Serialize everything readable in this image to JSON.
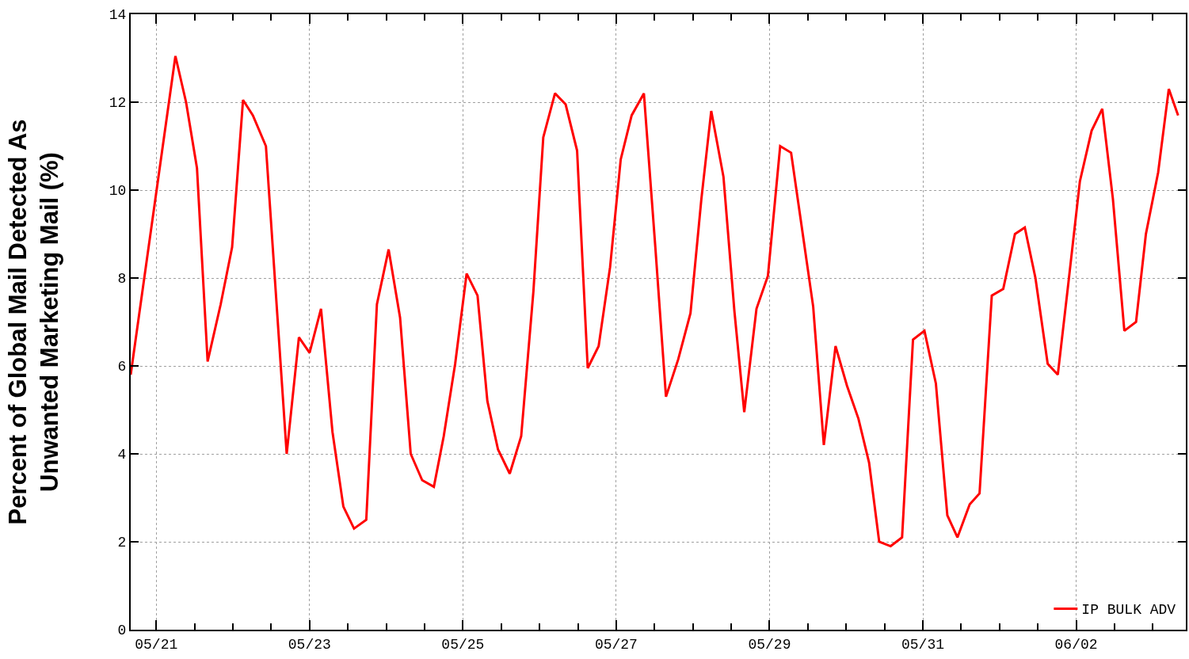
{
  "chart_data": {
    "type": "line",
    "ylabel": "Percent of Global Mail Detected As\nUnwanted Marketing Mail (%)",
    "x": [
      "--05-20T16:00",
      "--05-21T06:00",
      "--05-21T09:20",
      "--05-21T12:45",
      "--05-21T16:05",
      "--05-21T20:10",
      "--05-21T23:45",
      "--05-22T03:10",
      "--05-22T06:15",
      "--05-22T10:20",
      "--05-22T16:50",
      "--05-22T20:40",
      "--05-23T00:00",
      "--05-23T03:35",
      "--05-23T07:10",
      "--05-23T10:35",
      "--05-23T13:55",
      "--05-23T17:45",
      "--05-23T21:05",
      "--05-24T00:45",
      "--05-24T04:20",
      "--05-24T07:40",
      "--05-24T11:15",
      "--05-24T14:55",
      "--05-24T18:00",
      "--05-24T21:35",
      "--05-25T01:10",
      "--05-25T04:35",
      "--05-25T07:40",
      "--05-25T11:00",
      "--05-25T14:40",
      "--05-25T18:15",
      "--05-25T22:05",
      "--05-26T01:10",
      "--05-26T04:50",
      "--05-26T08:10",
      "--05-26T11:45",
      "--05-26T15:05",
      "--05-26T18:30",
      "--05-26T22:05",
      "--05-27T01:25",
      "--05-27T04:50",
      "--05-27T08:40",
      "--05-27T12:15",
      "--05-27T15:35",
      "--05-27T19:25",
      "--05-27T23:15",
      "--05-28T02:40",
      "--05-28T05:45",
      "--05-28T09:35",
      "--05-28T13:00",
      "--05-28T16:05",
      "--05-28T19:55",
      "--05-28T23:30",
      "--05-29T03:20",
      "--05-29T06:45",
      "--05-29T13:40",
      "--05-29T17:00",
      "--05-29T20:40",
      "--05-30T00:15",
      "--05-30T03:50",
      "--05-30T07:10",
      "--05-30T10:20",
      "--05-30T13:55",
      "--05-30T17:30",
      "--05-30T20:55",
      "--05-31T00:30",
      "--05-31T04:05",
      "--05-31T07:40",
      "--05-31T10:50",
      "--05-31T14:40",
      "--05-31T17:45",
      "--05-31T21:35",
      "--06-01T01:10",
      "--06-01T04:50",
      "--06-01T07:55",
      "--06-01T11:15",
      "--06-01T15:05",
      "--06-01T18:15",
      "--06-01T21:35",
      "--06-02T01:10",
      "--06-02T04:50",
      "--06-02T08:10",
      "--06-02T11:30",
      "--06-02T15:05",
      "--06-02T18:45",
      "--06-02T21:50",
      "--06-03T01:40",
      "--06-03T05:00",
      "--06-03T07:55"
    ],
    "series": [
      {
        "name": "IP BULK ADV",
        "color": "#ff0000",
        "values": [
          5.8,
          13.05,
          12.0,
          10.5,
          6.1,
          7.4,
          8.7,
          12.05,
          11.7,
          11.0,
          4.0,
          6.65,
          6.3,
          7.3,
          4.5,
          2.8,
          2.3,
          2.5,
          7.4,
          8.65,
          7.1,
          4.0,
          3.4,
          3.25,
          4.4,
          6.05,
          8.1,
          7.6,
          5.2,
          4.1,
          3.55,
          4.4,
          7.7,
          11.2,
          12.2,
          11.95,
          10.9,
          5.95,
          6.45,
          8.25,
          10.7,
          11.7,
          12.2,
          8.7,
          5.3,
          6.15,
          7.2,
          9.8,
          11.8,
          10.3,
          7.25,
          4.95,
          7.3,
          8.05,
          11.0,
          10.85,
          7.35,
          4.2,
          6.45,
          5.55,
          4.8,
          3.8,
          2.0,
          1.9,
          2.1,
          6.6,
          6.8,
          5.6,
          2.6,
          2.1,
          2.85,
          3.1,
          7.6,
          7.75,
          9.0,
          9.15,
          8.0,
          6.05,
          5.8,
          7.9,
          10.2,
          11.35,
          11.85,
          9.8,
          6.8,
          7.0,
          9.0,
          10.4,
          12.3,
          11.7
        ]
      }
    ],
    "xlim": [
      "--05-20T16:00",
      "--06-03T10:20"
    ],
    "xticks": [
      {
        "value": "--05-21",
        "label": "05/21"
      },
      {
        "value": "--05-21T12:00",
        "label": null
      },
      {
        "value": "--05-22",
        "label": null
      },
      {
        "value": "--05-22T12:00",
        "label": null
      },
      {
        "value": "--05-23",
        "label": "05/23"
      },
      {
        "value": "--05-23T12:00",
        "label": null
      },
      {
        "value": "--05-24",
        "label": null
      },
      {
        "value": "--05-24T12:00",
        "label": null
      },
      {
        "value": "--05-25",
        "label": "05/25"
      },
      {
        "value": "--05-25T12:00",
        "label": null
      },
      {
        "value": "--05-26",
        "label": null
      },
      {
        "value": "--05-26T12:00",
        "label": null
      },
      {
        "value": "--05-27",
        "label": "05/27"
      },
      {
        "value": "--05-27T12:00",
        "label": null
      },
      {
        "value": "--05-28",
        "label": null
      },
      {
        "value": "--05-28T12:00",
        "label": null
      },
      {
        "value": "--05-29",
        "label": "05/29"
      },
      {
        "value": "--05-29T12:00",
        "label": null
      },
      {
        "value": "--05-30",
        "label": null
      },
      {
        "value": "--05-30T12:00",
        "label": null
      },
      {
        "value": "--05-31",
        "label": "05/31"
      },
      {
        "value": "--05-31T12:00",
        "label": null
      },
      {
        "value": "--06-01",
        "label": null
      },
      {
        "value": "--06-01T12:00",
        "label": null
      },
      {
        "value": "--06-02",
        "label": "06/02"
      },
      {
        "value": "--06-02T12:00",
        "label": null
      },
      {
        "value": "--06-03",
        "label": null
      }
    ],
    "ylim": [
      0,
      14
    ],
    "yticks": [
      0,
      2,
      4,
      6,
      8,
      10,
      12,
      14
    ],
    "grid": true,
    "legend": "bottom right",
    "line_style": "solid",
    "marker": "none"
  }
}
